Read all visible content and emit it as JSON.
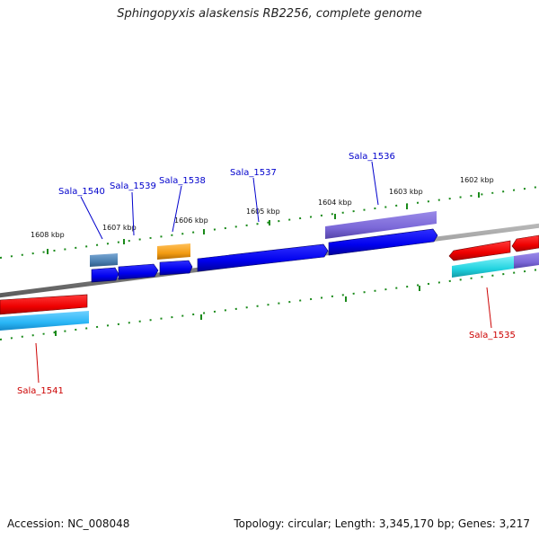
{
  "header": {
    "title": "Sphingopyxis alaskensis RB2256, complete genome"
  },
  "footer": {
    "accession": "Accession: NC_008048",
    "summary": "Topology: circular; Length: 3,345,170 bp; Genes: 3,217"
  },
  "map": {
    "scale_labels": [
      "1608 kbp",
      "1607 kbp",
      "1606 kbp",
      "1605 kbp",
      "1604 kbp",
      "1603 kbp",
      "1602 kbp"
    ],
    "forward_gene_labels": [
      "Sala_1540",
      "Sala_1539",
      "Sala_1538",
      "Sala_1537",
      "Sala_1536"
    ],
    "reverse_gene_labels": [
      "Sala_1535",
      "Sala_1541"
    ]
  },
  "colors": {
    "forward_gene": "#0000ee",
    "forward_label": "#0000cc",
    "reverse_gene": "#ff0000",
    "reverse_label": "#cc0000",
    "cog_purple": "#7b68d8",
    "cog_cyan": "#22d3e0",
    "cog_light_blue": "#29b6f6",
    "cog_steel": "#4a7fb0",
    "cog_orange": "#f39c12",
    "backbone": "#888888",
    "tick": "#1a8a1a"
  }
}
